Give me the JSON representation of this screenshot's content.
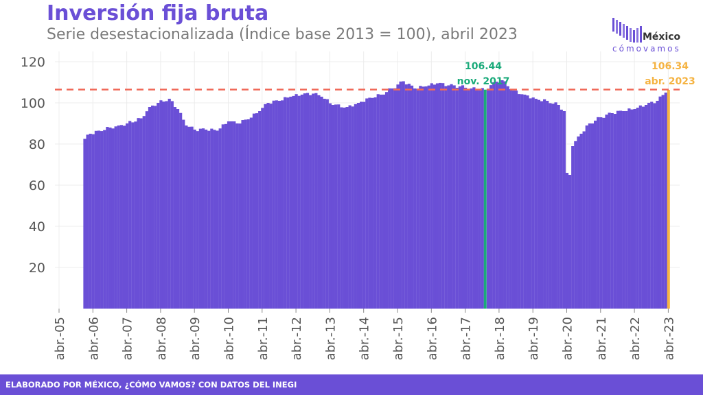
{
  "header": {
    "title": "Inversión fija bruta",
    "subtitle": "Serie desestacionalizada (Índice base 2013 = 100), abril 2023"
  },
  "logo": {
    "line1": "México",
    "line2": "cómovamos"
  },
  "footer": {
    "text": "ELABORADO POR MÉXICO, ¿CÓMO VAMOS? CON DATOS DEL INEGI"
  },
  "colors": {
    "bars": "#6a4fd6",
    "reference_line": "#f06a5a",
    "peak": "#1aaa7a",
    "latest": "#f5b342",
    "title": "#6a4fd6"
  },
  "chart_data": {
    "type": "bar",
    "x_start": "2006-01",
    "x_end": "2023-04",
    "ylim": [
      0,
      125
    ],
    "y_ticks": [
      20,
      40,
      60,
      80,
      100,
      120
    ],
    "x_tick_labels": [
      "abr.-05",
      "abr.-06",
      "abr.-07",
      "abr.-08",
      "abr.-09",
      "abr.-10",
      "abr.-11",
      "abr.-12",
      "abr.-13",
      "abr.-14",
      "abr.-15",
      "abr.-16",
      "abr.-17",
      "abr.-18",
      "abr.-19",
      "abr.-20",
      "abr.-21",
      "abr.-22",
      "abr.-23"
    ],
    "x_tick_dates": [
      "2005-04",
      "2006-04",
      "2007-04",
      "2008-04",
      "2009-04",
      "2010-04",
      "2011-04",
      "2012-04",
      "2013-04",
      "2014-04",
      "2015-04",
      "2016-04",
      "2017-04",
      "2018-04",
      "2019-04",
      "2020-04",
      "2021-04",
      "2022-04",
      "2023-04"
    ],
    "monthly_anchor_values": [
      [
        "2006-01",
        82.5
      ],
      [
        "2006-03",
        85
      ],
      [
        "2006-06",
        86.5
      ],
      [
        "2006-10",
        88
      ],
      [
        "2007-01",
        89
      ],
      [
        "2007-04",
        90
      ],
      [
        "2007-09",
        92.5
      ],
      [
        "2007-12",
        98
      ],
      [
        "2008-03",
        100
      ],
      [
        "2008-07",
        102
      ],
      [
        "2008-10",
        97
      ],
      [
        "2009-01",
        89
      ],
      [
        "2009-04",
        87
      ],
      [
        "2009-08",
        87
      ],
      [
        "2009-12",
        86.5
      ],
      [
        "2010-04",
        91
      ],
      [
        "2010-07",
        90
      ],
      [
        "2010-11",
        92
      ],
      [
        "2011-03",
        96
      ],
      [
        "2011-06",
        100
      ],
      [
        "2011-10",
        101
      ],
      [
        "2012-02",
        103
      ],
      [
        "2012-06",
        104
      ],
      [
        "2012-10",
        104.5
      ],
      [
        "2013-01",
        103
      ],
      [
        "2013-05",
        99
      ],
      [
        "2013-10",
        98
      ],
      [
        "2014-02",
        100
      ],
      [
        "2014-06",
        102.5
      ],
      [
        "2014-10",
        104
      ],
      [
        "2015-02",
        107
      ],
      [
        "2015-06",
        110.5
      ],
      [
        "2015-10",
        107
      ],
      [
        "2016-02",
        108
      ],
      [
        "2016-06",
        109.5
      ],
      [
        "2016-10",
        108.5
      ],
      [
        "2017-02",
        108
      ],
      [
        "2017-06",
        107
      ],
      [
        "2017-11",
        106.44
      ],
      [
        "2018-02",
        110
      ],
      [
        "2018-05",
        111
      ],
      [
        "2018-09",
        106
      ],
      [
        "2019-01",
        104
      ],
      [
        "2019-05",
        102
      ],
      [
        "2019-09",
        101
      ],
      [
        "2020-01",
        99
      ],
      [
        "2020-03",
        96
      ],
      [
        "2020-04",
        66
      ],
      [
        "2020-05",
        65
      ],
      [
        "2020-06",
        79
      ],
      [
        "2020-09",
        85
      ],
      [
        "2020-12",
        90
      ],
      [
        "2021-04",
        93
      ],
      [
        "2021-08",
        95
      ],
      [
        "2021-12",
        96
      ],
      [
        "2022-04",
        97
      ],
      [
        "2022-08",
        99
      ],
      [
        "2022-12",
        101
      ],
      [
        "2023-03",
        105
      ],
      [
        "2023-04",
        106.34
      ]
    ],
    "reference_value": 106.44,
    "annotations": [
      {
        "date": "2017-11",
        "value_label": "106.44",
        "date_label": "nov. 2017",
        "color": "#1aaa7a"
      },
      {
        "date": "2023-04",
        "value_label": "106.34",
        "date_label": "abr. 2023",
        "color": "#f5b342"
      }
    ],
    "grid": true
  }
}
